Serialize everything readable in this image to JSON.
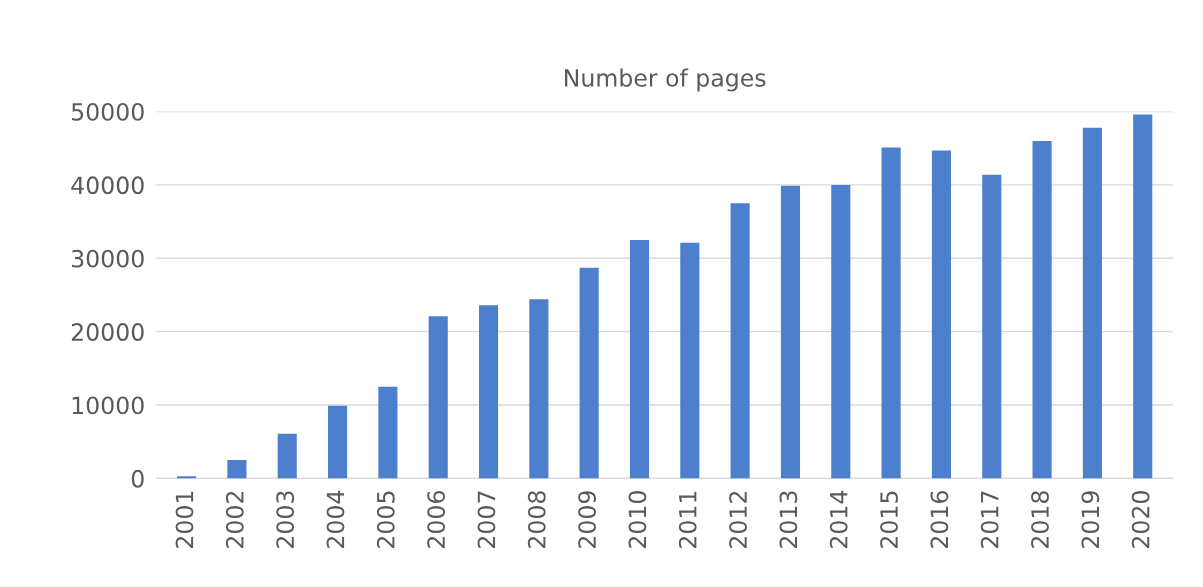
{
  "chart_data": {
    "type": "bar",
    "title": "Number of pages",
    "categories": [
      "2001",
      "2002",
      "2003",
      "2004",
      "2005",
      "2006",
      "2007",
      "2008",
      "2009",
      "2010",
      "2011",
      "2012",
      "2013",
      "2014",
      "2015",
      "2016",
      "2017",
      "2018",
      "2019",
      "2020"
    ],
    "values": [
      300,
      2500,
      6100,
      9900,
      12500,
      22100,
      23600,
      24400,
      28700,
      32500,
      32100,
      37500,
      39900,
      40000,
      45100,
      44700,
      41400,
      46000,
      47800,
      49600
    ],
    "color": "#4e7fcc",
    "ylim": [
      0,
      50000
    ],
    "yticks": [
      0,
      10000,
      20000,
      30000,
      40000,
      50000
    ],
    "grid": "y"
  }
}
